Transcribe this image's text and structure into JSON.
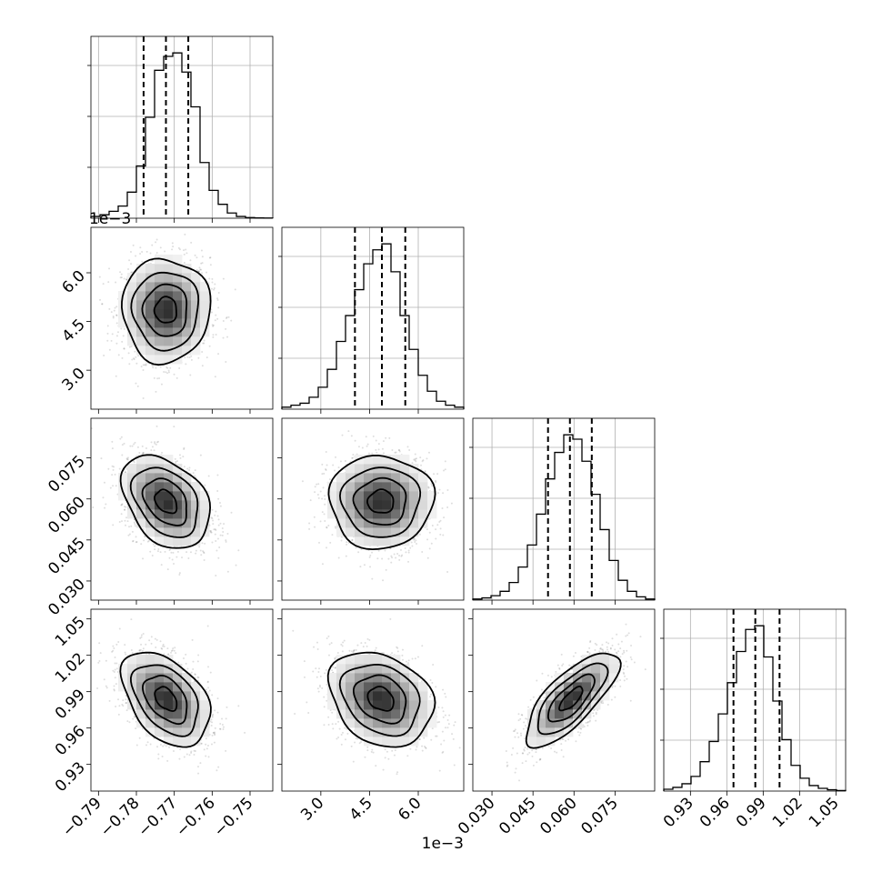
{
  "chart_data": {
    "type": "corner",
    "parameters": [
      {
        "index": 0,
        "range": [
          -0.792,
          -0.744
        ],
        "ticks": [
          -0.79,
          -0.78,
          -0.77,
          -0.76,
          -0.75
        ],
        "tick_labels": [
          "−0.79",
          "−0.78",
          "−0.77",
          "−0.76",
          "−0.75"
        ],
        "multiplier": "",
        "mean": -0.7722,
        "sigma": 0.0058,
        "quantiles": [
          -0.7781,
          -0.7722,
          -0.7663
        ],
        "histogram": [
          1,
          2,
          4,
          7,
          15,
          30,
          58,
          85,
          93,
          95,
          84,
          64,
          32,
          16,
          8,
          3,
          1,
          0.4,
          0.2,
          0.1
        ]
      },
      {
        "index": 1,
        "range": [
          1.8,
          7.4
        ],
        "ticks": [
          3.0,
          4.5,
          6.0
        ],
        "tick_labels": [
          "3.0",
          "4.5",
          "6.0"
        ],
        "multiplier": "1e−3",
        "mean": 4.85,
        "sigma": 0.8,
        "quantiles": [
          4.05,
          4.88,
          5.6
        ],
        "histogram": [
          1,
          2,
          3,
          6,
          11,
          20,
          34,
          47,
          60,
          73,
          80,
          83,
          69,
          47,
          30,
          17,
          9,
          4,
          2,
          1
        ]
      },
      {
        "index": 2,
        "range": [
          0.023,
          0.0895
        ],
        "ticks": [
          0.03,
          0.045,
          0.06,
          0.075
        ],
        "tick_labels": [
          "0.030",
          "0.045",
          "0.060",
          "0.075"
        ],
        "multiplier": "",
        "mean": 0.059,
        "sigma": 0.0085,
        "quantiles": [
          0.0505,
          0.0585,
          0.0665
        ],
        "histogram": [
          0.5,
          1,
          2,
          4,
          8,
          15,
          25,
          39,
          55,
          67,
          75,
          73,
          63,
          48,
          32,
          18,
          9,
          4,
          1.5,
          0.5
        ]
      },
      {
        "index": 3,
        "range": [
          0.908,
          1.058
        ],
        "ticks": [
          0.93,
          0.96,
          0.99,
          1.02,
          1.05
        ],
        "tick_labels": [
          "0.93",
          "0.96",
          "0.99",
          "1.02",
          "1.05"
        ],
        "multiplier": "",
        "mean": 0.984,
        "sigma": 0.0195,
        "quantiles": [
          0.9655,
          0.9835,
          1.0035
        ],
        "histogram": [
          1,
          2,
          4,
          8,
          16,
          27,
          42,
          59,
          76,
          88,
          90,
          73,
          49,
          28,
          14,
          7,
          3,
          1.5,
          0.7,
          0.3
        ]
      }
    ],
    "correlations": {
      "2-0": -0.35,
      "3-0": -0.42,
      "3-1": -0.25,
      "3-2": 0.75
    },
    "contour_levels": [
      0.5,
      1.0,
      1.5,
      2.0
    ],
    "quantile_style": "dashed",
    "grid": true
  }
}
